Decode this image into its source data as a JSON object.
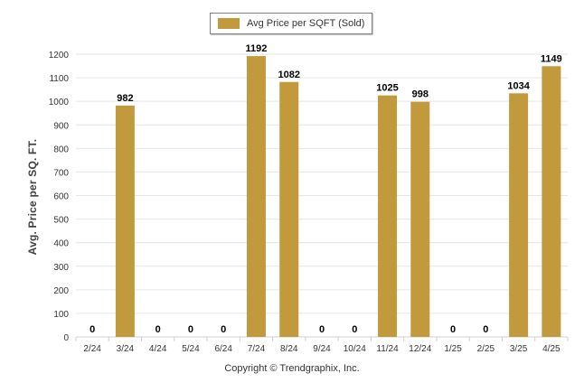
{
  "legend": {
    "label": "Avg Price per SQFT (Sold)"
  },
  "footer": {
    "copyright": "Copyright © Trendgraphix, Inc."
  },
  "colors": {
    "bar": "#c29a3e",
    "grid": "#e6e6e6",
    "axis": "#d0d0d0",
    "tick_text": "#333333"
  },
  "chart_data": {
    "type": "bar",
    "title": "",
    "xlabel": "",
    "ylabel": "Avg. Price per SQ. FT.",
    "ylim": [
      0,
      1200
    ],
    "yticks": [
      0,
      100,
      200,
      300,
      400,
      500,
      600,
      700,
      800,
      900,
      1000,
      1100,
      1200
    ],
    "grid": true,
    "legend_position": "top-center",
    "categories": [
      "2/24",
      "3/24",
      "4/24",
      "5/24",
      "6/24",
      "7/24",
      "8/24",
      "9/24",
      "10/24",
      "11/24",
      "12/24",
      "1/25",
      "2/25",
      "3/25",
      "4/25"
    ],
    "series": [
      {
        "name": "Avg Price per SQFT (Sold)",
        "values": [
          0,
          982,
          0,
          0,
          0,
          1192,
          1082,
          0,
          0,
          1025,
          998,
          0,
          0,
          1034,
          1149
        ],
        "labels": [
          "0",
          "982",
          "0",
          "0",
          "0",
          "1192",
          "1082",
          "0",
          "0",
          "1025",
          "998",
          "0",
          "0",
          "1034",
          "1149"
        ]
      }
    ]
  }
}
